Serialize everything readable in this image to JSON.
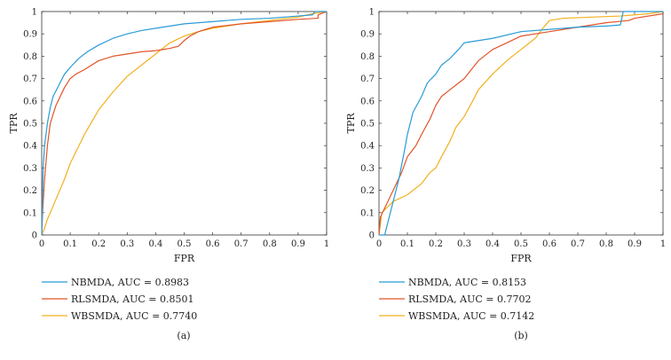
{
  "chart_data": [
    {
      "type": "line",
      "panel_label": "(a)",
      "xlabel": "FPR",
      "ylabel": "TPR",
      "xlim": [
        0,
        1
      ],
      "ylim": [
        0,
        1
      ],
      "xticks": [
        "0",
        "0.1",
        "0.2",
        "0.3",
        "0.4",
        "0.5",
        "0.6",
        "0.7",
        "0.8",
        "0.9",
        "1"
      ],
      "yticks": [
        "0",
        "0.1",
        "0.2",
        "0.3",
        "0.4",
        "0.5",
        "0.6",
        "0.7",
        "0.8",
        "0.9",
        "1"
      ],
      "legend_position": "below",
      "series": [
        {
          "name": "NBMDA",
          "label": "NBMDA, AUC = 0.8983",
          "auc": 0.8983,
          "color": "#2a9bd6",
          "points": [
            [
              0,
              0
            ],
            [
              0.005,
              0.3
            ],
            [
              0.01,
              0.4
            ],
            [
              0.02,
              0.5
            ],
            [
              0.03,
              0.57
            ],
            [
              0.04,
              0.62
            ],
            [
              0.06,
              0.67
            ],
            [
              0.08,
              0.72
            ],
            [
              0.1,
              0.75
            ],
            [
              0.13,
              0.79
            ],
            [
              0.16,
              0.82
            ],
            [
              0.2,
              0.85
            ],
            [
              0.25,
              0.88
            ],
            [
              0.3,
              0.9
            ],
            [
              0.35,
              0.915
            ],
            [
              0.4,
              0.925
            ],
            [
              0.5,
              0.945
            ],
            [
              0.6,
              0.955
            ],
            [
              0.7,
              0.965
            ],
            [
              0.8,
              0.97
            ],
            [
              0.9,
              0.98
            ],
            [
              0.95,
              0.985
            ],
            [
              0.96,
              1
            ],
            [
              1,
              1
            ]
          ]
        },
        {
          "name": "RLSMDA",
          "label": "RLSMDA, AUC = 0.8501",
          "auc": 0.8501,
          "color": "#e2542a",
          "points": [
            [
              0,
              0
            ],
            [
              0.003,
              0.1
            ],
            [
              0.01,
              0.25
            ],
            [
              0.02,
              0.4
            ],
            [
              0.03,
              0.5
            ],
            [
              0.05,
              0.58
            ],
            [
              0.08,
              0.66
            ],
            [
              0.1,
              0.7
            ],
            [
              0.12,
              0.72
            ],
            [
              0.15,
              0.74
            ],
            [
              0.2,
              0.78
            ],
            [
              0.25,
              0.8
            ],
            [
              0.3,
              0.81
            ],
            [
              0.35,
              0.82
            ],
            [
              0.4,
              0.825
            ],
            [
              0.45,
              0.835
            ],
            [
              0.48,
              0.845
            ],
            [
              0.5,
              0.87
            ],
            [
              0.52,
              0.89
            ],
            [
              0.55,
              0.91
            ],
            [
              0.6,
              0.93
            ],
            [
              0.7,
              0.945
            ],
            [
              0.8,
              0.955
            ],
            [
              0.9,
              0.965
            ],
            [
              0.97,
              0.97
            ],
            [
              0.97,
              0.985
            ],
            [
              1,
              1
            ]
          ]
        },
        {
          "name": "WBSMDA",
          "label": "WBSMDA, AUC = 0.7740",
          "auc": 0.774,
          "color": "#f2b01e",
          "points": [
            [
              0,
              0
            ],
            [
              0.01,
              0.03
            ],
            [
              0.02,
              0.07
            ],
            [
              0.05,
              0.16
            ],
            [
              0.08,
              0.25
            ],
            [
              0.1,
              0.32
            ],
            [
              0.15,
              0.45
            ],
            [
              0.2,
              0.56
            ],
            [
              0.25,
              0.64
            ],
            [
              0.3,
              0.71
            ],
            [
              0.35,
              0.76
            ],
            [
              0.4,
              0.81
            ],
            [
              0.45,
              0.86
            ],
            [
              0.5,
              0.89
            ],
            [
              0.55,
              0.91
            ],
            [
              0.6,
              0.925
            ],
            [
              0.7,
              0.945
            ],
            [
              0.8,
              0.96
            ],
            [
              0.9,
              0.975
            ],
            [
              0.95,
              0.99
            ],
            [
              1,
              1
            ]
          ]
        }
      ]
    },
    {
      "type": "line",
      "panel_label": "(b)",
      "xlabel": "FPR",
      "ylabel": "TPR",
      "xlim": [
        0,
        1
      ],
      "ylim": [
        0,
        1
      ],
      "xticks": [
        "0",
        "0.1",
        "0.2",
        "0.3",
        "0.4",
        "0.5",
        "0.6",
        "0.7",
        "0.8",
        "0.9",
        "1"
      ],
      "yticks": [
        "0",
        "0.1",
        "0.2",
        "0.3",
        "0.4",
        "0.5",
        "0.6",
        "0.7",
        "0.8",
        "0.9",
        "1"
      ],
      "legend_position": "below",
      "series": [
        {
          "name": "NBMDA",
          "label": "NBMDA, AUC = 0.8153",
          "auc": 0.8153,
          "color": "#2a9bd6",
          "points": [
            [
              0,
              0
            ],
            [
              0.02,
              0
            ],
            [
              0.03,
              0.05
            ],
            [
              0.05,
              0.15
            ],
            [
              0.07,
              0.25
            ],
            [
              0.09,
              0.38
            ],
            [
              0.1,
              0.45
            ],
            [
              0.12,
              0.55
            ],
            [
              0.15,
              0.62
            ],
            [
              0.17,
              0.68
            ],
            [
              0.2,
              0.72
            ],
            [
              0.22,
              0.76
            ],
            [
              0.25,
              0.79
            ],
            [
              0.28,
              0.83
            ],
            [
              0.3,
              0.86
            ],
            [
              0.35,
              0.87
            ],
            [
              0.4,
              0.88
            ],
            [
              0.5,
              0.91
            ],
            [
              0.6,
              0.92
            ],
            [
              0.7,
              0.93
            ],
            [
              0.8,
              0.935
            ],
            [
              0.85,
              0.94
            ],
            [
              0.86,
              1
            ],
            [
              1,
              1
            ]
          ]
        },
        {
          "name": "RLSMDA",
          "label": "RLSMDA, AUC = 0.7702",
          "auc": 0.7702,
          "color": "#e2542a",
          "points": [
            [
              0,
              0
            ],
            [
              0.005,
              0.08
            ],
            [
              0.02,
              0.12
            ],
            [
              0.05,
              0.2
            ],
            [
              0.08,
              0.28
            ],
            [
              0.1,
              0.35
            ],
            [
              0.13,
              0.4
            ],
            [
              0.15,
              0.45
            ],
            [
              0.18,
              0.52
            ],
            [
              0.2,
              0.58
            ],
            [
              0.22,
              0.62
            ],
            [
              0.25,
              0.65
            ],
            [
              0.28,
              0.68
            ],
            [
              0.3,
              0.7
            ],
            [
              0.35,
              0.78
            ],
            [
              0.4,
              0.83
            ],
            [
              0.45,
              0.86
            ],
            [
              0.5,
              0.89
            ],
            [
              0.55,
              0.9
            ],
            [
              0.6,
              0.91
            ],
            [
              0.7,
              0.93
            ],
            [
              0.8,
              0.95
            ],
            [
              0.88,
              0.96
            ],
            [
              0.9,
              0.97
            ],
            [
              1,
              0.99
            ]
          ]
        },
        {
          "name": "WBSMDA",
          "label": "WBSMDA, AUC = 0.7142",
          "auc": 0.7142,
          "color": "#f2b01e",
          "points": [
            [
              0,
              0
            ],
            [
              0.005,
              0.05
            ],
            [
              0.01,
              0.1
            ],
            [
              0.05,
              0.15
            ],
            [
              0.1,
              0.18
            ],
            [
              0.15,
              0.23
            ],
            [
              0.18,
              0.28
            ],
            [
              0.2,
              0.3
            ],
            [
              0.22,
              0.35
            ],
            [
              0.25,
              0.42
            ],
            [
              0.27,
              0.48
            ],
            [
              0.3,
              0.53
            ],
            [
              0.33,
              0.6
            ],
            [
              0.35,
              0.65
            ],
            [
              0.4,
              0.72
            ],
            [
              0.45,
              0.78
            ],
            [
              0.5,
              0.83
            ],
            [
              0.55,
              0.88
            ],
            [
              0.58,
              0.93
            ],
            [
              0.6,
              0.96
            ],
            [
              0.65,
              0.97
            ],
            [
              0.75,
              0.975
            ],
            [
              0.85,
              0.98
            ],
            [
              0.9,
              0.985
            ],
            [
              0.95,
              0.99
            ],
            [
              1,
              1
            ]
          ]
        }
      ]
    }
  ]
}
